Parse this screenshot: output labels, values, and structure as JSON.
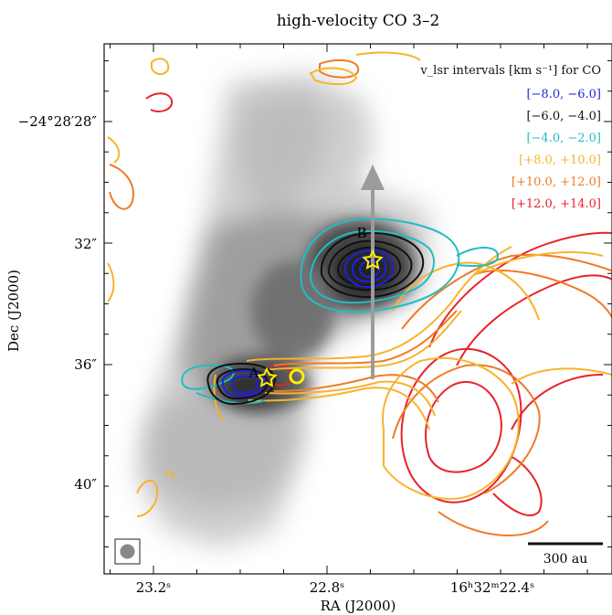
{
  "chart_data": {
    "type": "contour",
    "title": "high-velocity CO 3–2",
    "xlabel": "RA (J2000)",
    "ylabel": "Dec (J2000)",
    "x_ticks": [
      "23.2ˢ",
      "22.8ˢ",
      "16ʰ32ᵐ22.4ˢ"
    ],
    "y_ticks": [
      "−24°28′28″",
      "32″",
      "36″",
      "40″"
    ],
    "legend_title": "v_lsr intervals [km s⁻¹] for CO",
    "series": [
      {
        "name": "[−8.0, −6.0]",
        "color": "#1f1fe0"
      },
      {
        "name": "[−6.0, −4.0]",
        "color": "#111111"
      },
      {
        "name": "[−4.0, −2.0]",
        "color": "#22bcc4"
      },
      {
        "name": "[+8.0, +10.0]",
        "color": "#f6b42c"
      },
      {
        "name": "[+10.0, +12.0]",
        "color": "#f07a24"
      },
      {
        "name": "[+12.0, +14.0]",
        "color": "#e8222a"
      }
    ],
    "sources": [
      {
        "label": "A"
      },
      {
        "label": "B"
      }
    ],
    "scale_bar": "300 au",
    "colors": {
      "background_map": "grayscale",
      "star_marker": "#ffee00",
      "arrow": "#999999"
    }
  }
}
